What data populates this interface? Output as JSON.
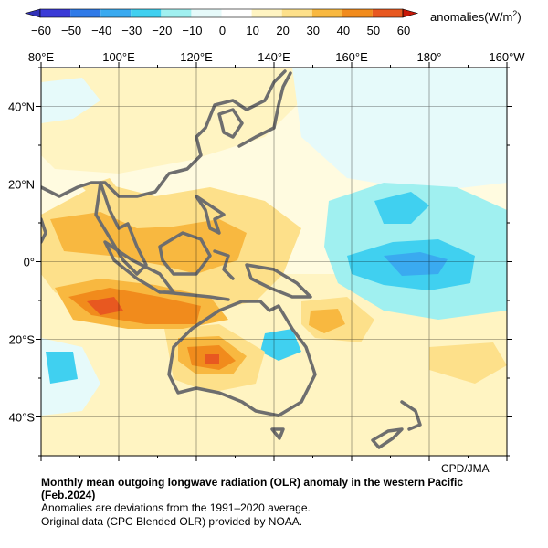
{
  "colorbar": {
    "unit_label": "anomalies(W/m",
    "unit_superscript": "2",
    "unit_close": ")",
    "tick_labels": [
      "−60",
      "−50",
      "−40",
      "−30",
      "−20",
      "−10",
      "0",
      "10",
      "20",
      "30",
      "40",
      "50",
      "60"
    ],
    "bins": [
      {
        "range": [
          -60,
          -50
        ],
        "color": "#3a3ad6"
      },
      {
        "range": [
          -50,
          -40
        ],
        "color": "#2f7ae8"
      },
      {
        "range": [
          -40,
          -30
        ],
        "color": "#3aaaf0"
      },
      {
        "range": [
          -30,
          -20
        ],
        "color": "#40d0f0"
      },
      {
        "range": [
          -20,
          -10
        ],
        "color": "#a0f0f0"
      },
      {
        "range": [
          -10,
          0
        ],
        "color": "#e6fafa"
      },
      {
        "range": [
          0,
          10
        ],
        "color": "#ffffff"
      },
      {
        "range": [
          10,
          20
        ],
        "color": "#fff4c2"
      },
      {
        "range": [
          20,
          30
        ],
        "color": "#fde08a"
      },
      {
        "range": [
          30,
          40
        ],
        "color": "#f8b840"
      },
      {
        "range": [
          40,
          50
        ],
        "color": "#f18b1c"
      },
      {
        "range": [
          50,
          60
        ],
        "color": "#e85820"
      },
      {
        "range": [
          60,
          70
        ],
        "color": "#d92a14"
      }
    ],
    "under_color": "#3232b8",
    "over_color": "#c81808"
  },
  "map": {
    "lon_labels": [
      "80°E",
      "100°E",
      "120°E",
      "140°E",
      "160°E",
      "180°",
      "160°W"
    ],
    "lat_labels": [
      "40°N",
      "20°N",
      "0°",
      "20°S",
      "40°S"
    ],
    "extent": {
      "lon": [
        80,
        200
      ],
      "lat": [
        -50,
        50
      ]
    },
    "land_outline_color": "#6e6e6e",
    "grid_color": "#000000"
  },
  "credit": "CPD/JMA",
  "caption": {
    "title_line1": "Monthly mean outgoing longwave radiation (OLR) anomaly in the western Pacific",
    "title_line2": "(Feb.2024)",
    "line3": "Anomalies are deviations from the 1991–2020 average.",
    "line4": "Original data (CPC Blended OLR) provided by NOAA."
  }
}
